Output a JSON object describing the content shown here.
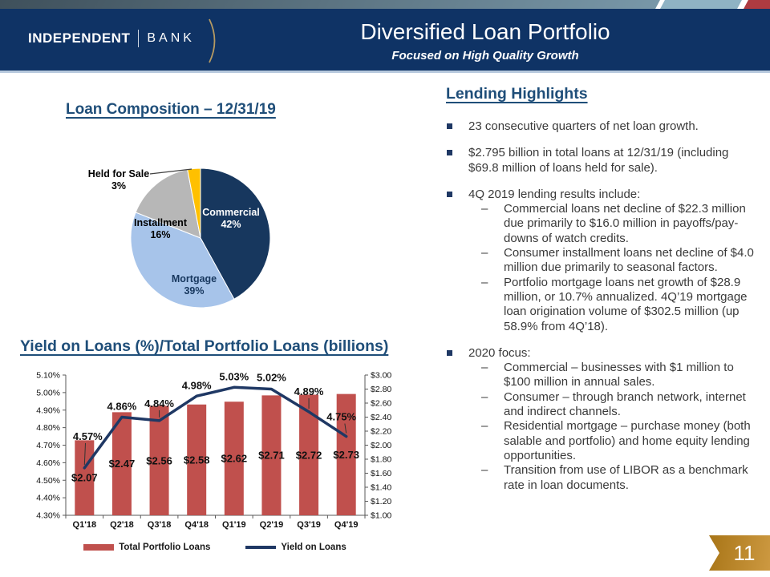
{
  "slide": {
    "logo": {
      "part1": "INDEPENDENT",
      "part2": "BANK"
    },
    "title": "Diversified Loan Portfolio",
    "subtitle": "Focused on High Quality Growth",
    "page_number": "11"
  },
  "colors": {
    "header_navy": "#0f3365",
    "heading_blue": "#1f4e79",
    "accent_red": "#ae3b41",
    "accent_lightblue": "#8fb3c4",
    "ribbon_gold": "#c08b2d"
  },
  "chart_data": [
    {
      "type": "pie",
      "title": "Loan Composition – 12/31/19",
      "slices": [
        {
          "label": "Commercial",
          "value": 42,
          "display": "42%",
          "color": "#17375e",
          "text_color": "#ffffff"
        },
        {
          "label": "Mortgage",
          "value": 39,
          "display": "39%",
          "color": "#a7c4ea",
          "text_color": "#17375e"
        },
        {
          "label": "Installment",
          "value": 16,
          "display": "16%",
          "color": "#b7b7b7",
          "text_color": "#000000"
        },
        {
          "label": "Held for Sale",
          "value": 3,
          "display": "3%",
          "color": "#ffc000",
          "text_color": "#000000",
          "outside": true
        }
      ]
    },
    {
      "type": "bar+line",
      "title": "Yield on Loans (%)/Total Portfolio Loans (billions)",
      "categories": [
        "Q1'18",
        "Q2'18",
        "Q3'18",
        "Q4'18",
        "Q1'19",
        "Q2'19",
        "Q3'19",
        "Q4'19"
      ],
      "series": [
        {
          "name": "Total Portfolio Loans",
          "type": "bar",
          "axis": "right",
          "color": "#c0504d",
          "values": [
            2.07,
            2.47,
            2.56,
            2.58,
            2.62,
            2.71,
            2.72,
            2.73
          ],
          "labels": [
            "$2.07",
            "$2.47",
            "$2.56",
            "$2.58",
            "$2.62",
            "$2.71",
            "$2.72",
            "$2.73"
          ]
        },
        {
          "name": "Yield on Loans",
          "type": "line",
          "axis": "left",
          "color": "#1f3864",
          "values": [
            4.57,
            4.86,
            4.84,
            4.98,
            5.03,
            5.02,
            4.89,
            4.75
          ],
          "labels": [
            "4.57%",
            "4.86%",
            "4.84%",
            "4.98%",
            "5.03%",
            "5.02%",
            "4.89%",
            "4.75%"
          ]
        }
      ],
      "left_axis": {
        "min": 4.3,
        "max": 5.1,
        "step": 0.1,
        "ticks": [
          "4.30%",
          "4.40%",
          "4.50%",
          "4.60%",
          "4.70%",
          "4.80%",
          "4.90%",
          "5.00%",
          "5.10%"
        ]
      },
      "right_axis": {
        "min": 1.0,
        "max": 3.0,
        "step": 0.2,
        "ticks": [
          "$1.00",
          "$1.20",
          "$1.40",
          "$1.60",
          "$1.80",
          "$2.00",
          "$2.20",
          "$2.40",
          "$2.60",
          "$2.80",
          "$3.00"
        ]
      },
      "legend_position": "bottom",
      "grid": false
    }
  ],
  "highlights": {
    "title": "Lending Highlights",
    "items": [
      {
        "text": "23 consecutive quarters of net loan growth.",
        "subs": []
      },
      {
        "text": "$2.795 billion in total loans at 12/31/19 (including $69.8 million of loans held for sale).",
        "subs": []
      },
      {
        "text": "4Q 2019 lending results include:",
        "subs": [
          "Commercial loans net decline of $22.3 million due primarily to $16.0 million in payoffs/pay-downs of watch credits.",
          "Consumer installment loans net decline of $4.0 million due primarily to seasonal factors.",
          "Portfolio mortgage loans net growth of $28.9 million, or 10.7% annualized. 4Q’19 mortgage loan origination volume of $302.5 million (up 58.9% from 4Q’18)."
        ]
      },
      {
        "text": "2020 focus:",
        "subs": [
          "Commercial – businesses with $1 million to $100 million in annual sales.",
          "Consumer – through branch network, internet and indirect channels.",
          "Residential mortgage – purchase money (both salable and portfolio) and home equity lending opportunities.",
          "Transition from use of LIBOR as a benchmark rate in loan documents."
        ]
      }
    ]
  }
}
